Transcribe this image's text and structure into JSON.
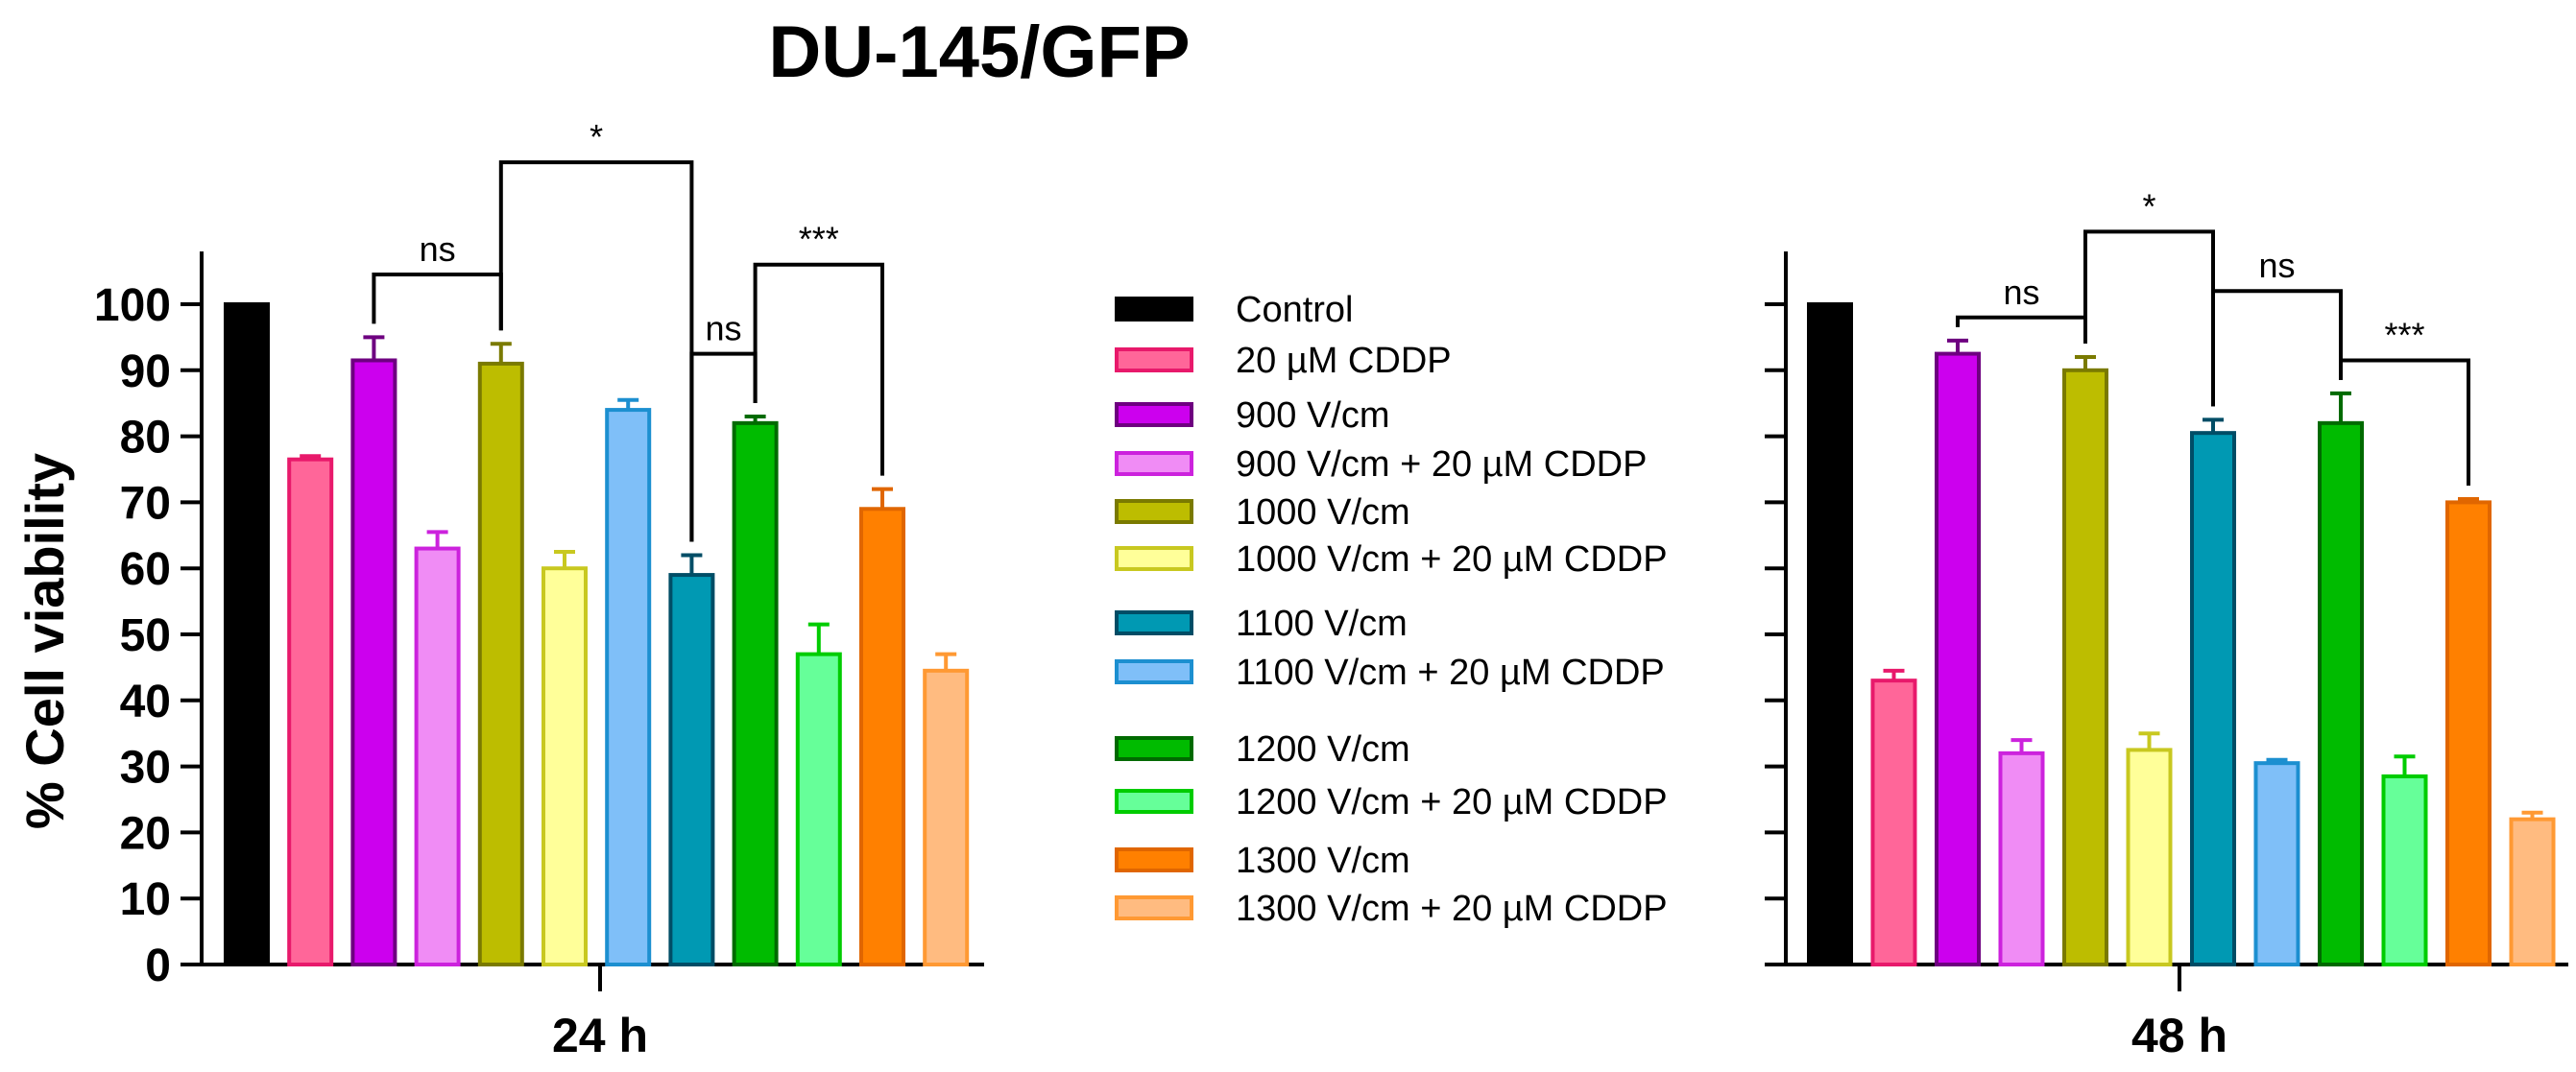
{
  "chart_data": {
    "type": "bar",
    "title": "DU-145/GFP",
    "ylabel": "% Cell viability",
    "ylim": [
      0,
      110
    ],
    "yticks": [
      0,
      10,
      20,
      30,
      40,
      50,
      60,
      70,
      80,
      90,
      100
    ],
    "legend_position": "center",
    "series": [
      {
        "name": "Control",
        "color": "#000000",
        "fill": "#000000"
      },
      {
        "name": "20 µM CDDP",
        "color": "#e8196b",
        "fill": "#ff6699"
      },
      {
        "name": "900 V/cm",
        "color": "#6e0080",
        "fill": "#cc00ee"
      },
      {
        "name": "900 V/cm + 20 µM CDDP",
        "color": "#cc22dd",
        "fill": "#f08cf5"
      },
      {
        "name": "1000 V/cm",
        "color": "#7a7a00",
        "fill": "#bdbd00"
      },
      {
        "name": "1000 V/cm + 20 µM CDDP",
        "color": "#c8c820",
        "fill": "#ffff99"
      },
      {
        "name": "1100 V/cm",
        "color": "#004d66",
        "fill": "#0099b3"
      },
      {
        "name": "1100 V/cm + 20 µM CDDP",
        "color": "#1c8fd0",
        "fill": "#7fbff8"
      },
      {
        "name": "1200 V/cm",
        "color": "#006a00",
        "fill": "#00bb00"
      },
      {
        "name": "1200 V/cm + 20 µM CDDP",
        "color": "#00cc00",
        "fill": "#66ff99"
      },
      {
        "name": "1300 V/cm",
        "color": "#e06600",
        "fill": "#ff8000"
      },
      {
        "name": "1300 V/cm + 20 µM CDDP",
        "color": "#ff9933",
        "fill": "#ffbb80"
      }
    ],
    "panels": [
      {
        "xlabel": "24 h",
        "values": [
          100,
          76.5,
          91.5,
          63,
          91,
          60,
          59,
          84,
          82,
          47,
          69,
          44.5
        ],
        "errors": [
          0,
          0.5,
          3.5,
          2.5,
          3,
          2.5,
          3,
          1.5,
          1,
          4.5,
          3,
          2.5
        ],
        "display_order": [
          0,
          1,
          2,
          3,
          4,
          5,
          7,
          6,
          8,
          9,
          10,
          11
        ],
        "comparisons": [
          {
            "from": 2,
            "to": 4,
            "label": "ns",
            "y": 104.5
          },
          {
            "from": 4,
            "to": 6,
            "label": "*",
            "y": 121.5
          },
          {
            "from": 6,
            "to": 8,
            "label": "ns",
            "y": 92.5
          },
          {
            "from": 8,
            "to": 10,
            "label": "***",
            "y": 106
          }
        ]
      },
      {
        "xlabel": "48 h",
        "values": [
          100,
          43,
          92.5,
          32,
          90,
          32.5,
          80.5,
          30.5,
          82,
          28.5,
          70,
          22
        ],
        "errors": [
          0,
          1.5,
          2,
          2,
          2,
          2.5,
          2,
          0.5,
          4.5,
          3,
          0.5,
          1
        ],
        "display_order": [
          0,
          1,
          2,
          3,
          4,
          5,
          6,
          7,
          8,
          9,
          10,
          11
        ],
        "comparisons": [
          {
            "from": 2,
            "to": 4,
            "label": "ns",
            "y": 98
          },
          {
            "from": 4,
            "to": 6,
            "label": "*",
            "y": 111
          },
          {
            "from": 6,
            "to": 8,
            "label": "ns",
            "y": 102
          },
          {
            "from": 8,
            "to": 10,
            "label": "***",
            "y": 91.5
          }
        ]
      }
    ]
  }
}
